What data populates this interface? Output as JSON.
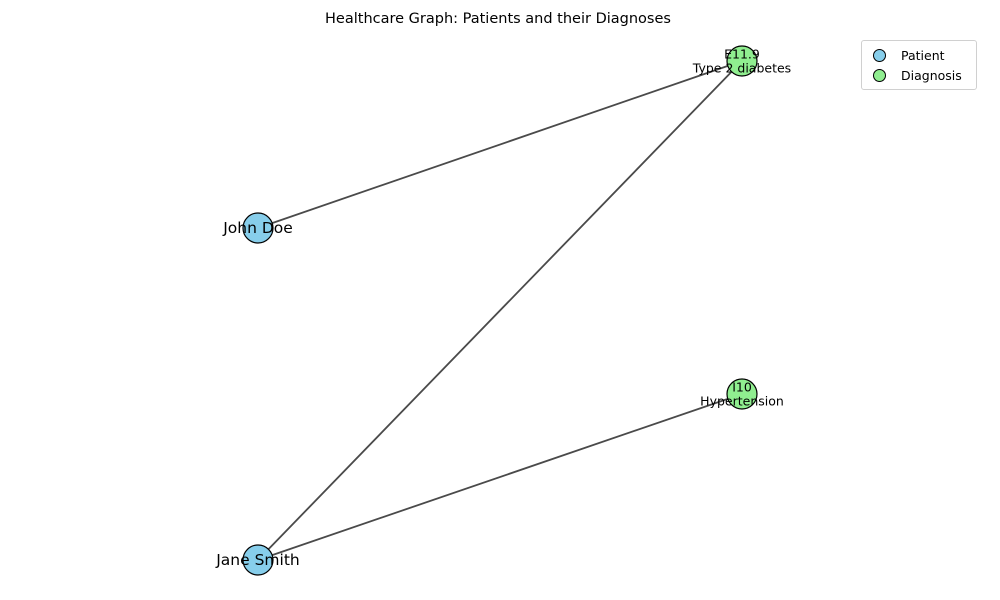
{
  "title": "Healthcare Graph: Patients and their Diagnoses",
  "colors": {
    "patient": "#87ceeb",
    "diagnosis": "#90ee90",
    "edge": "#4a4a4a",
    "node_border": "#000000"
  },
  "legend": {
    "patient_label": "Patient",
    "diagnosis_label": "Diagnosis"
  },
  "nodes": [
    {
      "id": "john",
      "type": "patient",
      "lines": [
        "John Doe"
      ]
    },
    {
      "id": "jane",
      "type": "patient",
      "lines": [
        "Jane Smith"
      ]
    },
    {
      "id": "e119",
      "type": "diagnosis",
      "lines": [
        "E11.9",
        "Type 2 diabetes"
      ]
    },
    {
      "id": "i10",
      "type": "diagnosis",
      "lines": [
        "I10",
        "Hypertension"
      ]
    }
  ],
  "edges": [
    {
      "source": "john",
      "target": "e119"
    },
    {
      "source": "jane",
      "target": "e119"
    },
    {
      "source": "jane",
      "target": "i10"
    }
  ]
}
